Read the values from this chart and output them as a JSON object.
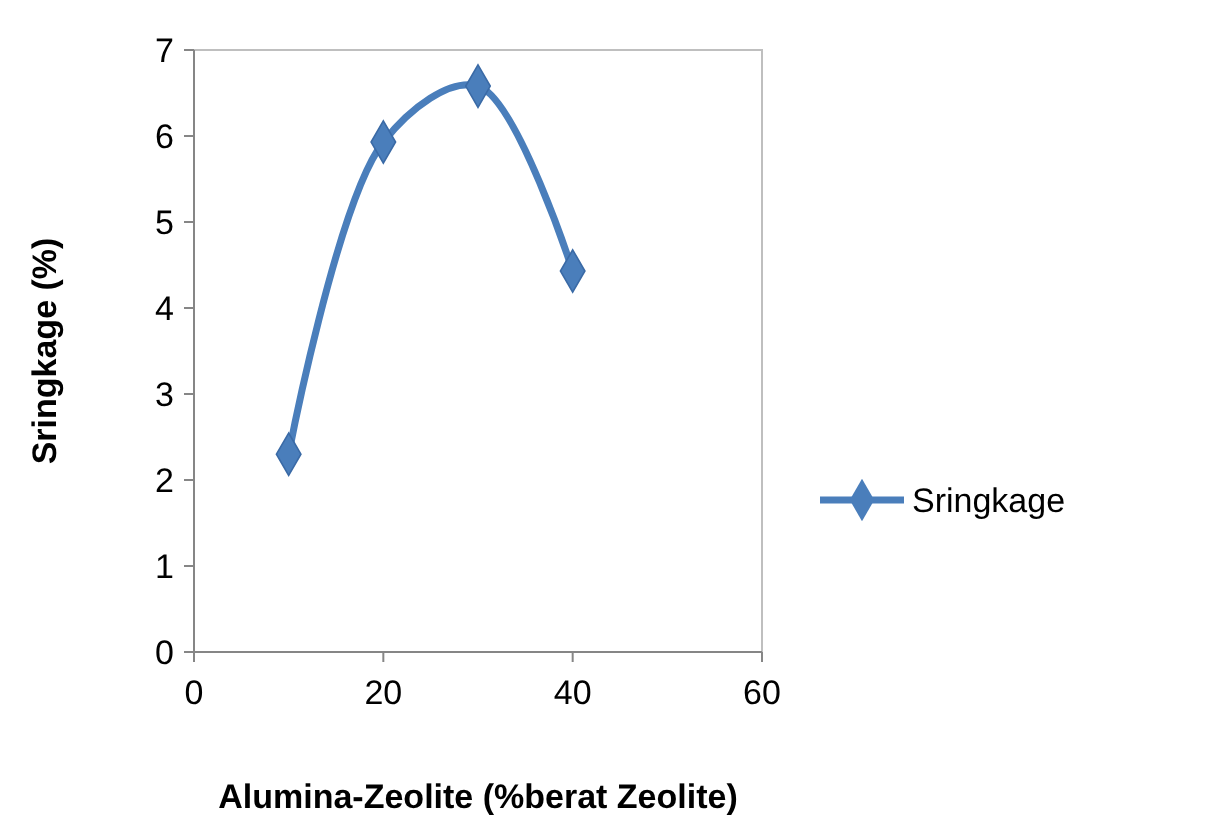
{
  "chart_data": {
    "type": "line",
    "xlabel": "Alumina-Zeolite (%berat Zeolite)",
    "ylabel": "Sringkage (%)",
    "x": [
      10,
      20,
      30,
      40
    ],
    "series": [
      {
        "name": "Sringkage",
        "color": "#4a7ebb",
        "values": [
          2.3,
          5.93,
          6.58,
          4.43
        ]
      }
    ],
    "xlim": [
      0,
      60
    ],
    "xticks": [
      0,
      20,
      40,
      60
    ],
    "ylim": [
      0,
      7
    ],
    "yticks": [
      0,
      1,
      2,
      3,
      4,
      5,
      6,
      7
    ],
    "grid": false,
    "legend": "right",
    "marker": "diamond",
    "line_style": "solid"
  }
}
